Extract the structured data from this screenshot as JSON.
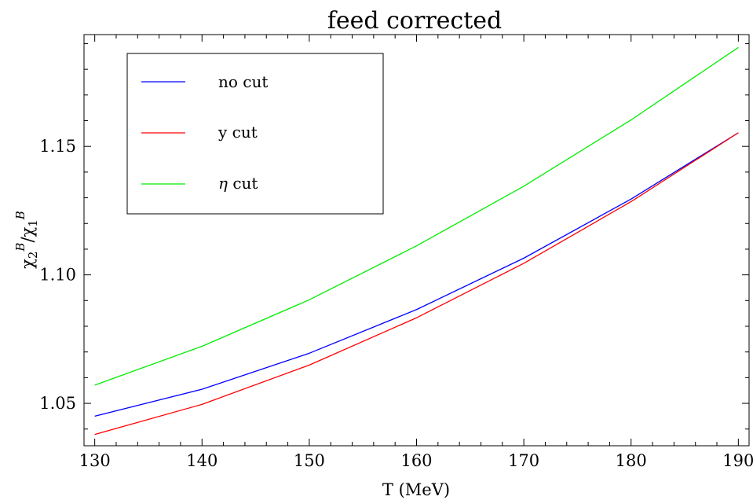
{
  "chart_data": {
    "type": "line",
    "title": "feed corrected",
    "xlabel": "T (MeV)",
    "ylabel": {
      "chi": "χ",
      "sub_numerator": "2",
      "sub_denominator": "1",
      "sup": "B",
      "slash": "/"
    },
    "xlim": [
      129,
      191
    ],
    "ylim": [
      1.0335,
      1.1935
    ],
    "x_ticks": [
      130,
      140,
      150,
      160,
      170,
      180,
      190
    ],
    "x_tick_labels": [
      "130",
      "140",
      "150",
      "160",
      "170",
      "180",
      "190"
    ],
    "y_ticks": [
      1.05,
      1.1,
      1.15
    ],
    "y_tick_labels": [
      "1.05",
      "1.10",
      "1.15"
    ],
    "x": [
      130,
      140,
      150,
      160,
      170,
      180,
      190
    ],
    "series": [
      {
        "name": "no cut",
        "color": "#0000ff",
        "label_parts": {
          "symbol": "",
          "text": "no cut"
        },
        "values": [
          1.045,
          1.0555,
          1.0695,
          1.0865,
          1.1065,
          1.1295,
          1.1553
        ]
      },
      {
        "name": "y cut",
        "color": "#ff0000",
        "label_parts": {
          "symbol": "",
          "text": "y cut"
        },
        "values": [
          1.0379,
          1.0496,
          1.0649,
          1.0833,
          1.1045,
          1.1285,
          1.1553
        ]
      },
      {
        "name": "η cut",
        "color": "#00ee00",
        "label_parts": {
          "symbol": "η",
          "text": " cut"
        },
        "values": [
          1.0571,
          1.0722,
          1.0903,
          1.1113,
          1.1345,
          1.1603,
          1.1885
        ]
      }
    ],
    "grid": false,
    "legend_position": "top-left"
  }
}
